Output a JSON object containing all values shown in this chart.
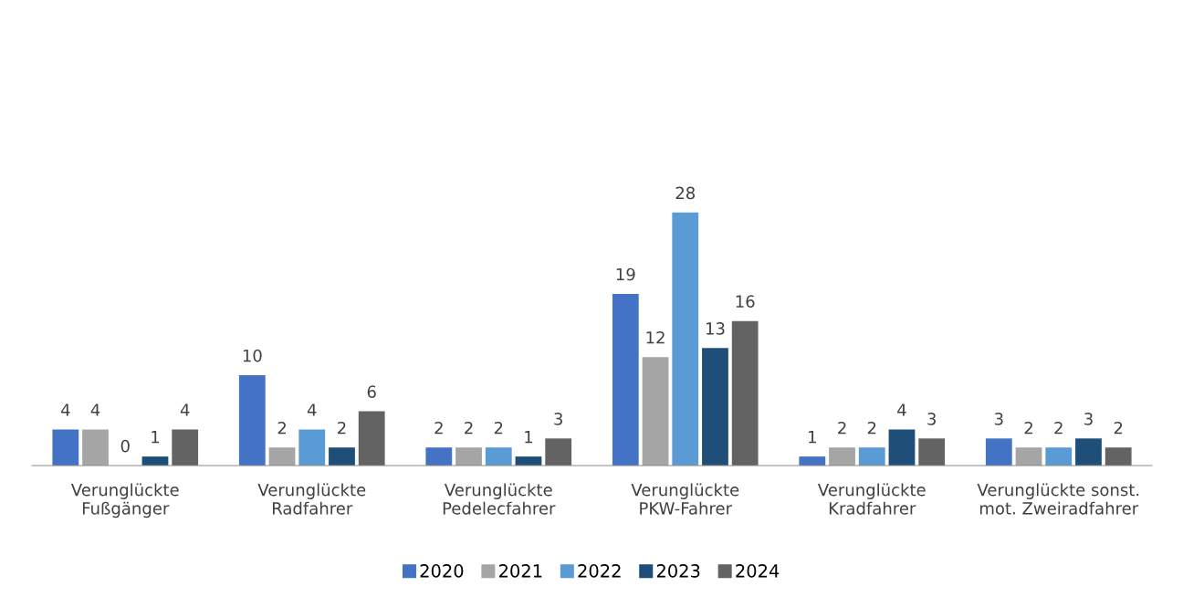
{
  "chart_data": {
    "type": "bar",
    "categories": [
      "Verunglückte\nFußgänger",
      "Verunglückte\nRadfahrer",
      "Verunglückte\nPedelecfahrer",
      "Verunglückte\nPKW-Fahrer",
      "Verunglückte\nKradfahrer",
      "Verunglückte sonst.\nmot. Zweiradfahrer"
    ],
    "series": [
      {
        "name": "2020",
        "color": "#4472c4",
        "values": [
          4,
          10,
          2,
          19,
          1,
          3
        ]
      },
      {
        "name": "2021",
        "color": "#a5a5a5",
        "values": [
          4,
          2,
          2,
          12,
          2,
          2
        ]
      },
      {
        "name": "2022",
        "color": "#5b9bd5",
        "values": [
          0,
          4,
          2,
          28,
          2,
          2
        ]
      },
      {
        "name": "2023",
        "color": "#1f4e79",
        "values": [
          1,
          2,
          1,
          13,
          4,
          3
        ]
      },
      {
        "name": "2024",
        "color": "#636363",
        "values": [
          4,
          6,
          3,
          16,
          3,
          2
        ]
      }
    ],
    "tick_labels": "x",
    "data_labels": true,
    "grid": false,
    "legend": "bottom"
  }
}
